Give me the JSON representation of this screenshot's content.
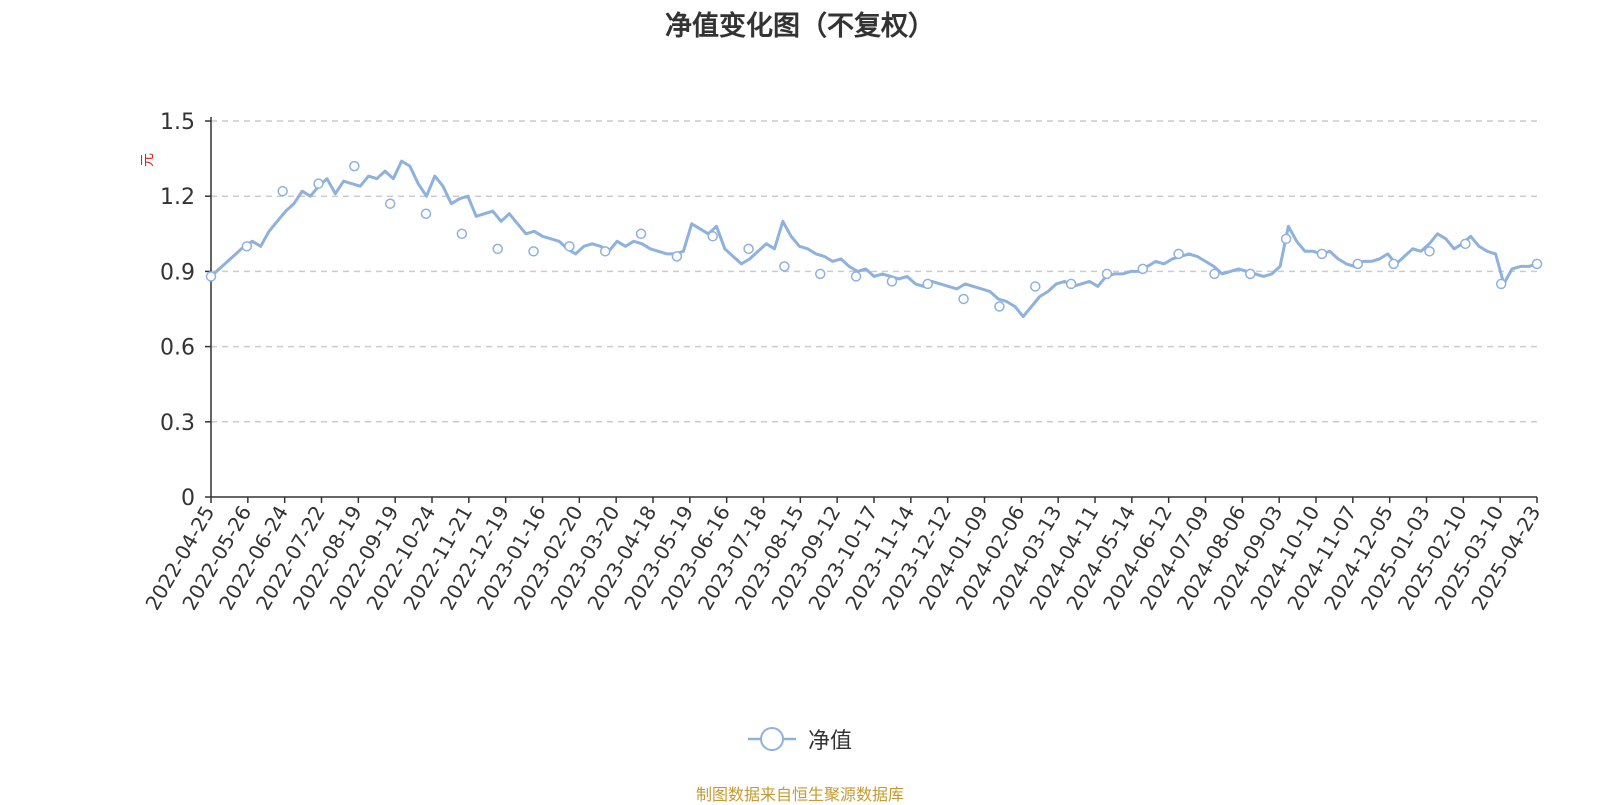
{
  "chart_data": {
    "type": "line",
    "title": "净值变化图（不复权）",
    "ylabel": "元",
    "ylim": [
      0,
      1.5
    ],
    "yticks": [
      "0",
      "0.3",
      "0.6",
      "0.9",
      "1.2",
      "1.5"
    ],
    "xlabels": [
      "2022-04-25",
      "2022-05-26",
      "2022-06-24",
      "2022-07-22",
      "2022-08-19",
      "2022-09-19",
      "2022-10-24",
      "2022-11-21",
      "2022-12-19",
      "2023-01-16",
      "2023-02-20",
      "2023-03-20",
      "2023-04-18",
      "2023-05-19",
      "2023-06-16",
      "2023-07-18",
      "2023-08-15",
      "2023-09-12",
      "2023-10-17",
      "2023-11-14",
      "2023-12-12",
      "2024-01-09",
      "2024-02-06",
      "2024-03-13",
      "2024-04-11",
      "2024-05-14",
      "2024-06-12",
      "2024-07-09",
      "2024-08-06",
      "2024-09-03",
      "2024-10-10",
      "2024-11-07",
      "2024-12-05",
      "2025-01-03",
      "2025-02-10",
      "2025-03-10",
      "2025-04-23"
    ],
    "grid": true,
    "legend_position": "bottom-center",
    "series": [
      {
        "name": "净值",
        "color": "#8eb1de",
        "marker_values": [
          0.88,
          1.0,
          1.22,
          1.25,
          1.32,
          1.17,
          1.13,
          1.05,
          0.99,
          0.98,
          1.0,
          0.98,
          1.05,
          0.96,
          1.04,
          0.99,
          0.92,
          0.89,
          0.88,
          0.86,
          0.85,
          0.79,
          0.76,
          0.84,
          0.85,
          0.89,
          0.91,
          0.97,
          0.89,
          0.89,
          1.03,
          0.97,
          0.93,
          0.93,
          0.98,
          1.01,
          0.85,
          0.93
        ],
        "values": [
          0.88,
          0.91,
          0.94,
          0.97,
          1.0,
          1.02,
          1.0,
          1.06,
          1.1,
          1.14,
          1.17,
          1.22,
          1.2,
          1.24,
          1.27,
          1.21,
          1.26,
          1.25,
          1.24,
          1.28,
          1.27,
          1.3,
          1.27,
          1.34,
          1.32,
          1.25,
          1.2,
          1.28,
          1.24,
          1.17,
          1.19,
          1.2,
          1.12,
          1.13,
          1.14,
          1.1,
          1.13,
          1.09,
          1.05,
          1.06,
          1.04,
          1.03,
          1.02,
          0.99,
          0.97,
          1.0,
          1.01,
          1.0,
          0.98,
          1.02,
          1.0,
          1.02,
          1.01,
          0.99,
          0.98,
          0.97,
          0.97,
          0.98,
          1.09,
          1.07,
          1.05,
          1.08,
          0.99,
          0.96,
          0.93,
          0.95,
          0.98,
          1.01,
          0.99,
          1.1,
          1.04,
          1.0,
          0.99,
          0.97,
          0.96,
          0.94,
          0.95,
          0.92,
          0.9,
          0.91,
          0.88,
          0.89,
          0.88,
          0.87,
          0.88,
          0.85,
          0.84,
          0.86,
          0.85,
          0.84,
          0.83,
          0.85,
          0.84,
          0.83,
          0.82,
          0.79,
          0.78,
          0.76,
          0.72,
          0.76,
          0.8,
          0.82,
          0.85,
          0.86,
          0.84,
          0.85,
          0.86,
          0.84,
          0.88,
          0.89,
          0.89,
          0.9,
          0.9,
          0.92,
          0.94,
          0.93,
          0.95,
          0.96,
          0.97,
          0.96,
          0.94,
          0.92,
          0.89,
          0.9,
          0.91,
          0.9,
          0.89,
          0.88,
          0.89,
          0.92,
          1.08,
          1.02,
          0.98,
          0.98,
          0.97,
          0.98,
          0.95,
          0.93,
          0.92,
          0.94,
          0.94,
          0.95,
          0.97,
          0.93,
          0.96,
          0.99,
          0.98,
          1.01,
          1.05,
          1.03,
          0.99,
          1.01,
          1.04,
          1.0,
          0.98,
          0.97,
          0.85,
          0.91,
          0.92,
          0.92,
          0.93
        ]
      }
    ],
    "source_note": "制图数据来自恒生聚源数据库"
  }
}
